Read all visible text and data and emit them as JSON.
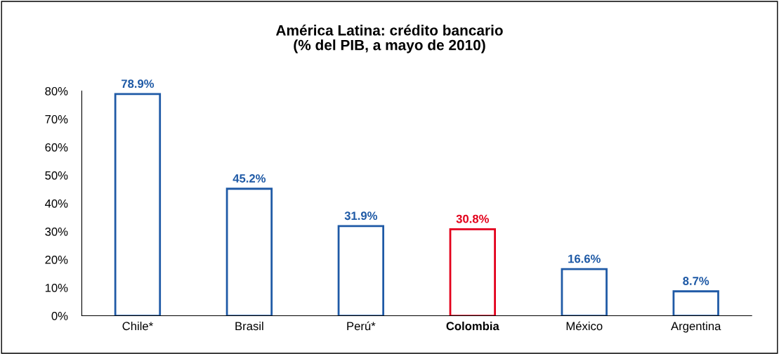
{
  "chart_data": {
    "type": "bar",
    "title": "América Latina: crédito bancario\n(% del PIB, a mayo de 2010)",
    "categories": [
      "Chile*",
      "Brasil",
      "Perú*",
      "Colombia",
      "México",
      "Argentina"
    ],
    "values": [
      78.9,
      45.2,
      31.9,
      30.8,
      16.6,
      8.7
    ],
    "colors": [
      "#1f5aa6",
      "#1f5aa6",
      "#1f5aa6",
      "#e3001b",
      "#1f5aa6",
      "#1f5aa6"
    ],
    "value_labels": [
      "78.9%",
      "45.2%",
      "31.9%",
      "30.8%",
      "16.6%",
      "8.7%"
    ],
    "ylim": [
      0,
      80
    ],
    "yticks": [
      {
        "value": 0,
        "label": "0%"
      },
      {
        "value": 10,
        "label": "10%"
      },
      {
        "value": 20,
        "label": "20%"
      },
      {
        "value": 30,
        "label": "30%"
      },
      {
        "value": 40,
        "label": "40%"
      },
      {
        "value": 50,
        "label": "50%"
      },
      {
        "value": 60,
        "label": "60%"
      },
      {
        "value": 70,
        "label": "70%"
      },
      {
        "value": 80,
        "label": "80%"
      }
    ],
    "grid": false,
    "legend": false
  }
}
